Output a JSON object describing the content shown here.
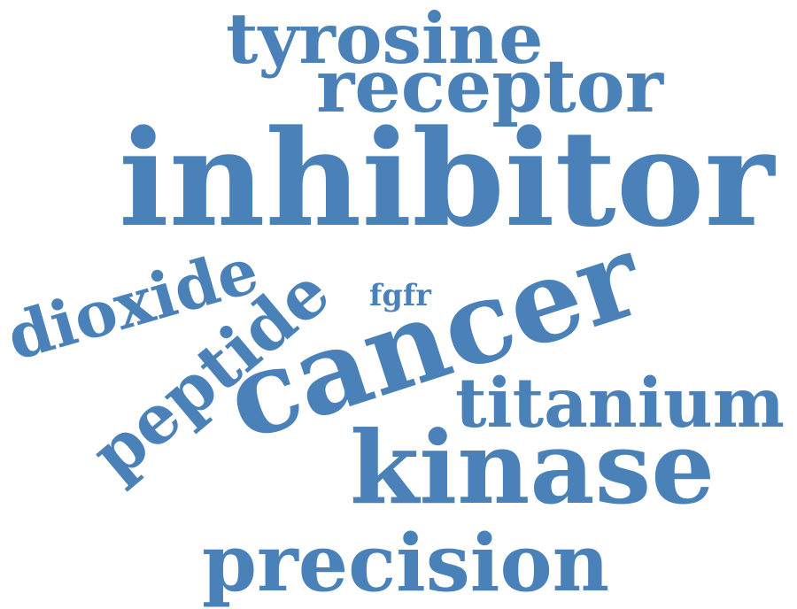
{
  "word_cloud": {
    "color": "#4a81b8",
    "words": [
      {
        "id": "tyrosine",
        "text": "tyrosine"
      },
      {
        "id": "receptor",
        "text": "receptor"
      },
      {
        "id": "inhibitor",
        "text": "inhibitor"
      },
      {
        "id": "dioxide",
        "text": "dioxide"
      },
      {
        "id": "peptide",
        "text": "peptide"
      },
      {
        "id": "fgfr",
        "text": "fgfr"
      },
      {
        "id": "cancer",
        "text": "cancer"
      },
      {
        "id": "titanium",
        "text": "titanium"
      },
      {
        "id": "kinase",
        "text": "kinase"
      },
      {
        "id": "precision",
        "text": "precision"
      }
    ]
  }
}
